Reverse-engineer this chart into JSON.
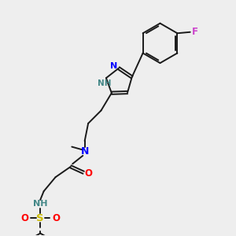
{
  "bg_color": "#eeeeee",
  "bond_color": "#1a1a1a",
  "bond_width": 1.4,
  "figsize": [
    3.0,
    3.0
  ],
  "dpi": 100,
  "xlim": [
    0,
    10
  ],
  "ylim": [
    0,
    10
  ]
}
